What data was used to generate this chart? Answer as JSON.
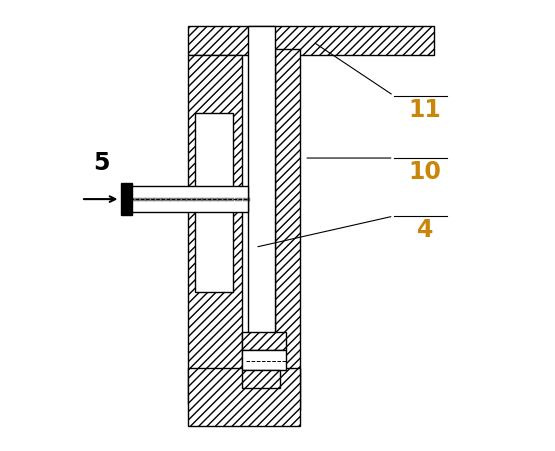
{
  "background_color": "#ffffff",
  "line_color": "#000000",
  "label_color_5": "#000000",
  "label_color_11": "#c8860a",
  "label_color_10": "#c8860a",
  "label_color_4": "#c8860a",
  "figsize": [
    5.55,
    4.52
  ],
  "dpi": 100
}
